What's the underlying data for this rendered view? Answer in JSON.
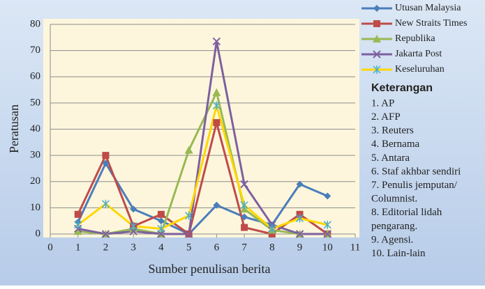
{
  "chart_data": {
    "type": "line",
    "x_label": "Sumber  penulisan berita",
    "y_label": "Peratusan",
    "x": [
      1,
      2,
      3,
      4,
      5,
      6,
      7,
      8,
      9,
      10
    ],
    "xlim": [
      0,
      11
    ],
    "xticks": [
      0,
      1,
      2,
      3,
      4,
      5,
      6,
      7,
      8,
      9,
      10,
      11
    ],
    "ylim": [
      0,
      80
    ],
    "yticks": [
      0,
      10,
      20,
      30,
      40,
      50,
      60,
      70,
      80
    ],
    "grid": true,
    "series": [
      {
        "name": "Utusan Malaysia",
        "color": "#4a7ebb",
        "marker": "diamond",
        "marker_color": "#4a7ebb",
        "values": [
          4.5,
          27,
          9.5,
          5,
          0,
          11,
          6.5,
          3.5,
          19,
          14.5
        ]
      },
      {
        "name": "New Straits Times",
        "color": "#be4b48",
        "marker": "square",
        "marker_color": "#be4b48",
        "values": [
          7.5,
          30,
          3,
          7.5,
          0,
          42.5,
          2.5,
          0,
          7.5,
          0
        ]
      },
      {
        "name": "Republika",
        "color": "#98b954",
        "marker": "triangle",
        "marker_color": "#98b954",
        "values": [
          1,
          0,
          2,
          0,
          32,
          54,
          9.5,
          1.5,
          0,
          0
        ]
      },
      {
        "name": "Jakarta Post",
        "color": "#7d60a0",
        "marker": "x",
        "marker_color": "#7d60a0",
        "values": [
          2,
          0,
          1,
          0,
          0,
          73.5,
          19,
          3.5,
          0,
          0
        ]
      },
      {
        "name": "Keseluruhan",
        "color": "#ffd700",
        "marker": "star",
        "marker_color": "#4bacc6",
        "values": [
          3.5,
          11.5,
          3,
          2,
          7,
          49,
          11,
          2,
          6,
          3.5
        ]
      }
    ],
    "notes_title": "Keterangan",
    "notes": [
      [
        "1. AP"
      ],
      [
        "2. AFP"
      ],
      [
        "3. Reuters"
      ],
      [
        "4. Bernama"
      ],
      [
        "5. Antara"
      ],
      [
        "6. Staf akhbar sendiri"
      ],
      [
        "7. Penulis jemputan/",
        "Columnist."
      ],
      [
        "8. Editorial lidah",
        "pengarang."
      ],
      [
        "9. Agensi."
      ],
      [
        "10. Lain-lain"
      ]
    ]
  }
}
